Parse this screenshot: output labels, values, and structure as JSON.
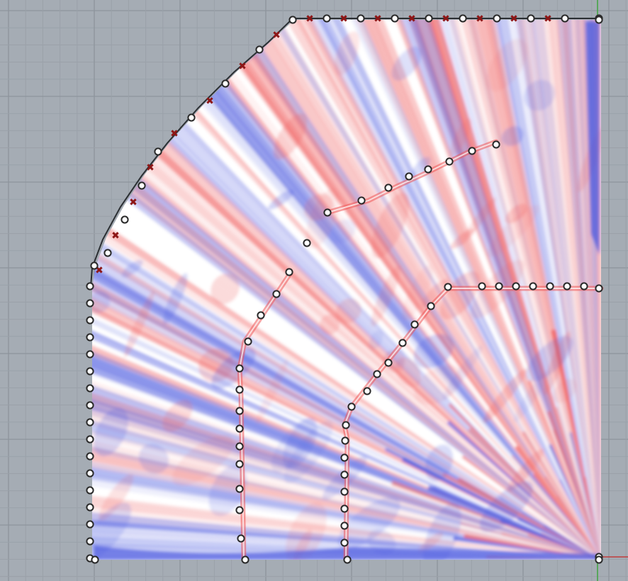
{
  "viewport": {
    "background": "#a5acb4",
    "grid_minor_color": "#9aa1a9",
    "grid_major_color": "#8d949c",
    "y_axis_color": "#3fa33f",
    "x_axis_color": "#c03b3b"
  },
  "field": {
    "neutral_color": "#ffffff",
    "tension_color": "#ef5a5a",
    "compression_color": "#4a58df",
    "domain_outline_color": "#2b2f33"
  },
  "markers": {
    "fixed_support_color": "#8e1616",
    "node_fill": "#ffffff",
    "node_stroke": "#2a2a2a",
    "cross_glyph": "✖"
  },
  "labels": {
    "title": "",
    "legend": ""
  }
}
